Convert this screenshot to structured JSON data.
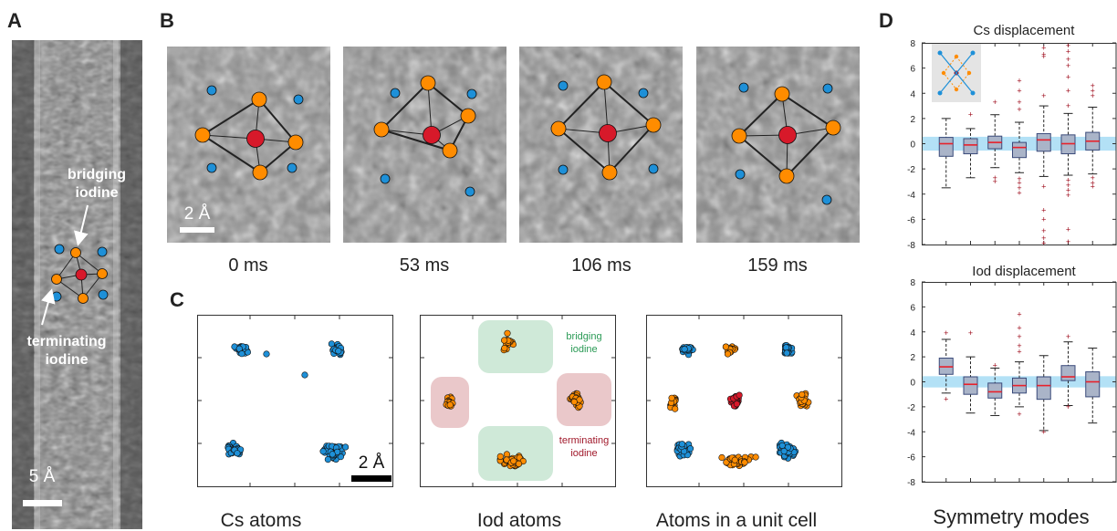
{
  "panels": {
    "a": {
      "letter": "A",
      "bridging_label": [
        "bridging",
        "iodine"
      ],
      "terminating_label": [
        "terminating",
        "iodine"
      ],
      "scale_label": "5 Å"
    },
    "b": {
      "letter": "B",
      "scale_label": "2 Å",
      "frames": [
        "0 ms",
        "53 ms",
        "106 ms",
        "159 ms"
      ]
    },
    "c": {
      "letter": "C",
      "scale_label": "2 Å",
      "bridging_label": [
        "bridging",
        "iodine"
      ],
      "terminating_label": [
        "terminating",
        "iodine"
      ],
      "captions": [
        "Cs atoms",
        "Iod atoms",
        "Atoms in a unit cell"
      ]
    },
    "d": {
      "letter": "D",
      "xlabel": "Symmetry modes"
    }
  },
  "colors": {
    "cs": "#1e90d8",
    "iodine": "#ff8c00",
    "center": "#d7192a",
    "bridging_box": "#cfe9d8",
    "terminating_box": "#eac8ca",
    "bridging_text": "#2a9a55",
    "terminating_text": "#a0182a",
    "box_fill": "#aab4c8",
    "median": "#e8202a",
    "outlier": "#a01020",
    "band": "#a6dcf5"
  },
  "chart_data": [
    {
      "type": "box",
      "title": "Cs displacement",
      "ylim": [
        -8,
        8
      ],
      "yticks": [
        8,
        6,
        4,
        2,
        0,
        -2,
        -4,
        -6,
        -8
      ],
      "boxes": [
        {
          "q1": -1.0,
          "median": 0.0,
          "q3": 0.5,
          "whisker_low": -3.5,
          "whisker_high": 2.0,
          "outliers": []
        },
        {
          "q1": -0.8,
          "median": -0.1,
          "q3": 0.4,
          "whisker_low": -2.7,
          "whisker_high": 1.2,
          "outliers": [
            2.3
          ]
        },
        {
          "q1": -0.4,
          "median": 0.1,
          "q3": 0.6,
          "whisker_low": -1.9,
          "whisker_high": 2.3,
          "outliers": [
            -2.7,
            -3.0,
            3.3
          ]
        },
        {
          "q1": -1.1,
          "median": -0.3,
          "q3": 0.1,
          "whisker_low": -2.3,
          "whisker_high": 1.7,
          "outliers": [
            -2.8,
            -3.1,
            -3.5,
            -3.9,
            2.7,
            3.3,
            4.2,
            5.0
          ]
        },
        {
          "q1": -0.6,
          "median": 0.3,
          "q3": 0.8,
          "whisker_low": -2.6,
          "whisker_high": 3.0,
          "outliers": [
            -3.4,
            -5.3,
            -6.0,
            -6.9,
            -7.5,
            -7.9,
            3.8,
            6.9,
            7.1,
            7.6
          ]
        },
        {
          "q1": -0.8,
          "median": 0.0,
          "q3": 0.7,
          "whisker_low": -2.5,
          "whisker_high": 2.4,
          "outliers": [
            -2.9,
            -3.3,
            -3.7,
            -4.1,
            -6.8,
            -7.8,
            3.0,
            4.2,
            5.3,
            6.2,
            6.7,
            7.3,
            7.8
          ]
        },
        {
          "q1": -0.5,
          "median": 0.2,
          "q3": 0.9,
          "whisker_low": -2.4,
          "whisker_high": 2.9,
          "outliers": [
            -2.7,
            -3.1,
            -3.4,
            3.8,
            4.2,
            4.6
          ]
        }
      ],
      "band": [
        -0.55,
        0.55
      ]
    },
    {
      "type": "box",
      "title": "Iod displacement",
      "ylim": [
        -8,
        8
      ],
      "yticks": [
        8,
        6,
        4,
        2,
        0,
        -2,
        -4,
        -6,
        -8
      ],
      "boxes": [
        {
          "q1": 0.6,
          "median": 1.2,
          "q3": 1.9,
          "whisker_low": -0.9,
          "whisker_high": 3.4,
          "outliers": [
            3.9,
            -1.4
          ]
        },
        {
          "q1": -1.0,
          "median": -0.2,
          "q3": 0.4,
          "whisker_low": -2.5,
          "whisker_high": 2.0,
          "outliers": [
            3.9
          ]
        },
        {
          "q1": -1.3,
          "median": -0.8,
          "q3": -0.1,
          "whisker_low": -2.7,
          "whisker_high": 1.1,
          "outliers": [
            1.3
          ]
        },
        {
          "q1": -0.9,
          "median": -0.3,
          "q3": 0.3,
          "whisker_low": -2.0,
          "whisker_high": 1.6,
          "outliers": [
            -2.6,
            2.4,
            2.9,
            3.6,
            4.3,
            5.4
          ]
        },
        {
          "q1": -1.4,
          "median": -0.3,
          "q3": 0.4,
          "whisker_low": -3.9,
          "whisker_high": 2.1,
          "outliers": [
            -4.0
          ]
        },
        {
          "q1": 0.1,
          "median": 0.4,
          "q3": 1.3,
          "whisker_low": -1.9,
          "whisker_high": 3.2,
          "outliers": [
            -2.0,
            3.6
          ]
        },
        {
          "q1": -1.2,
          "median": 0.0,
          "q3": 0.8,
          "whisker_low": -3.3,
          "whisker_high": 2.7,
          "outliers": []
        }
      ],
      "band": [
        -0.45,
        0.45
      ]
    }
  ]
}
